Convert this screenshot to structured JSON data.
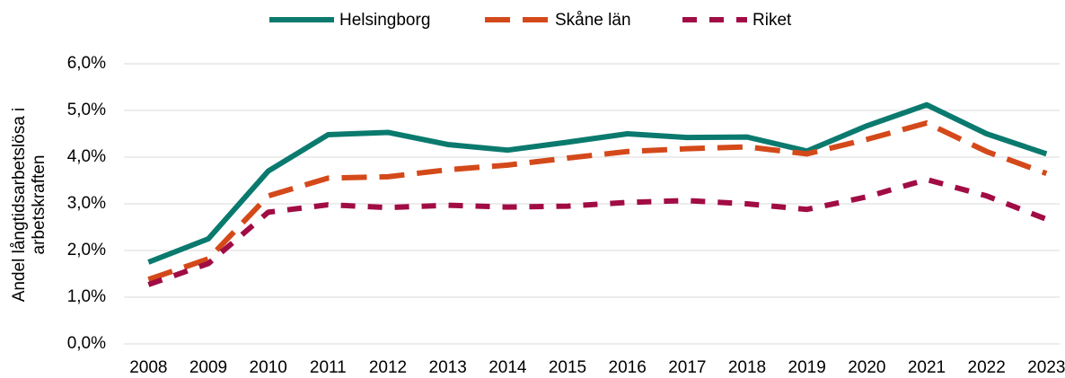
{
  "chart_data": {
    "type": "line",
    "y_label": [
      "Andel långtidsarbetslösa i",
      "arbetskraften"
    ],
    "categories": [
      "2008",
      "2009",
      "2010",
      "2011",
      "2012",
      "2013",
      "2014",
      "2015",
      "2016",
      "2017",
      "2018",
      "2019",
      "2020",
      "2021",
      "2022",
      "2023"
    ],
    "series": [
      {
        "name": "Helsingborg",
        "color": "#0b7a6e",
        "values": [
          1.75,
          2.25,
          3.7,
          4.48,
          4.53,
          4.27,
          4.15,
          4.32,
          4.5,
          4.42,
          4.43,
          4.13,
          4.67,
          5.12,
          4.5,
          4.07
        ]
      },
      {
        "name": "Skåne län",
        "color": "#d4491a",
        "values": [
          1.38,
          1.82,
          3.17,
          3.55,
          3.58,
          3.73,
          3.83,
          3.98,
          4.12,
          4.18,
          4.22,
          4.07,
          4.38,
          4.73,
          4.12,
          3.65
        ]
      },
      {
        "name": "Riket",
        "color": "#a10c45",
        "values": [
          1.27,
          1.72,
          2.82,
          2.98,
          2.92,
          2.97,
          2.93,
          2.95,
          3.03,
          3.07,
          3.0,
          2.88,
          3.15,
          3.52,
          3.17,
          2.67
        ]
      }
    ],
    "ylim": [
      0,
      6
    ],
    "yticks": [
      {
        "value": 0,
        "label": "0,0%"
      },
      {
        "value": 1,
        "label": "1,0%"
      },
      {
        "value": 2,
        "label": "2,0%"
      },
      {
        "value": 3,
        "label": "3,0%"
      },
      {
        "value": 4,
        "label": "4,0%"
      },
      {
        "value": 5,
        "label": "5,0%"
      },
      {
        "value": 6,
        "label": "6,0%"
      }
    ],
    "grid": true,
    "legend": "top"
  }
}
